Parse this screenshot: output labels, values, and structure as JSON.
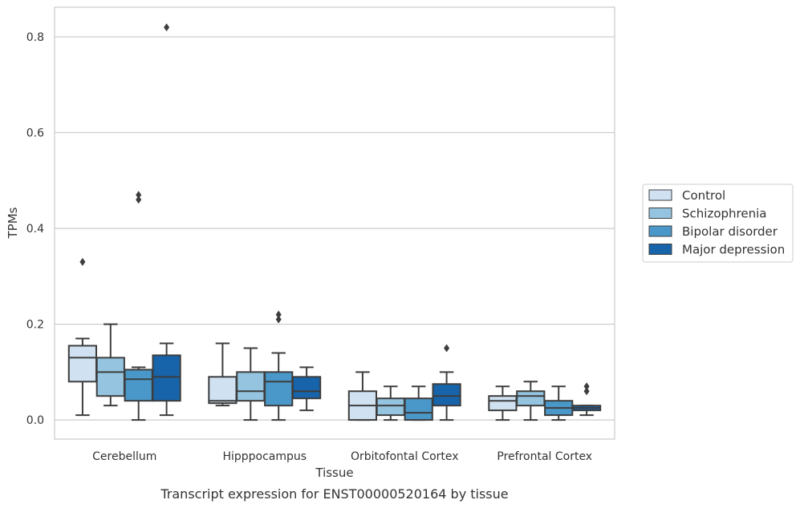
{
  "chart_data": {
    "type": "boxplot",
    "caption": "Transcript expression for ENST00000520164 by tissue",
    "xlabel": "Tissue",
    "ylabel": "TPMs",
    "ylim": [
      -0.04,
      0.862
    ],
    "yticks": [
      0.0,
      0.2,
      0.4,
      0.6,
      0.8
    ],
    "ytick_labels": [
      "0.0",
      "0.2",
      "0.4",
      "0.6",
      "0.8"
    ],
    "grid": "horizontal",
    "legend_position": "right",
    "categories": [
      "Cerebellum",
      "Hipppocampus",
      "Orbitofontal Cortex",
      "Prefrontal Cortex"
    ],
    "series": [
      {
        "name": "Control",
        "color": "#d0e1f2",
        "boxes": [
          {
            "whislo": 0.01,
            "q1": 0.08,
            "med": 0.13,
            "q3": 0.155,
            "whishi": 0.17,
            "fliers": [
              0.33
            ]
          },
          {
            "whislo": 0.03,
            "q1": 0.035,
            "med": 0.04,
            "q3": 0.09,
            "whishi": 0.16,
            "fliers": []
          },
          {
            "whislo": 0.0,
            "q1": 0.0,
            "med": 0.03,
            "q3": 0.06,
            "whishi": 0.1,
            "fliers": []
          },
          {
            "whislo": 0.0,
            "q1": 0.02,
            "med": 0.04,
            "q3": 0.05,
            "whishi": 0.07,
            "fliers": []
          }
        ]
      },
      {
        "name": "Schizophrenia",
        "color": "#94c4df",
        "boxes": [
          {
            "whislo": 0.03,
            "q1": 0.05,
            "med": 0.1,
            "q3": 0.13,
            "whishi": 0.2,
            "fliers": []
          },
          {
            "whislo": 0.0,
            "q1": 0.04,
            "med": 0.06,
            "q3": 0.1,
            "whishi": 0.15,
            "fliers": []
          },
          {
            "whislo": 0.0,
            "q1": 0.01,
            "med": 0.03,
            "q3": 0.045,
            "whishi": 0.07,
            "fliers": []
          },
          {
            "whislo": 0.0,
            "q1": 0.03,
            "med": 0.05,
            "q3": 0.06,
            "whishi": 0.08,
            "fliers": []
          }
        ]
      },
      {
        "name": "Bipolar disorder",
        "color": "#4a98c9",
        "boxes": [
          {
            "whislo": 0.0,
            "q1": 0.04,
            "med": 0.085,
            "q3": 0.105,
            "whishi": 0.11,
            "fliers": [
              0.46,
              0.47
            ]
          },
          {
            "whislo": 0.0,
            "q1": 0.03,
            "med": 0.08,
            "q3": 0.1,
            "whishi": 0.14,
            "fliers": [
              0.21,
              0.22
            ]
          },
          {
            "whislo": 0.0,
            "q1": 0.0,
            "med": 0.015,
            "q3": 0.045,
            "whishi": 0.07,
            "fliers": []
          },
          {
            "whislo": 0.0,
            "q1": 0.01,
            "med": 0.025,
            "q3": 0.04,
            "whishi": 0.07,
            "fliers": []
          }
        ]
      },
      {
        "name": "Major depression",
        "color": "#1764ab",
        "boxes": [
          {
            "whislo": 0.01,
            "q1": 0.04,
            "med": 0.09,
            "q3": 0.135,
            "whishi": 0.16,
            "fliers": [
              0.82
            ]
          },
          {
            "whislo": 0.02,
            "q1": 0.045,
            "med": 0.06,
            "q3": 0.09,
            "whishi": 0.11,
            "fliers": []
          },
          {
            "whislo": 0.0,
            "q1": 0.03,
            "med": 0.05,
            "q3": 0.075,
            "whishi": 0.1,
            "fliers": [
              0.15
            ]
          },
          {
            "whislo": 0.01,
            "q1": 0.02,
            "med": 0.025,
            "q3": 0.03,
            "whishi": 0.03,
            "fliers": [
              0.06,
              0.07
            ]
          }
        ]
      }
    ]
  }
}
